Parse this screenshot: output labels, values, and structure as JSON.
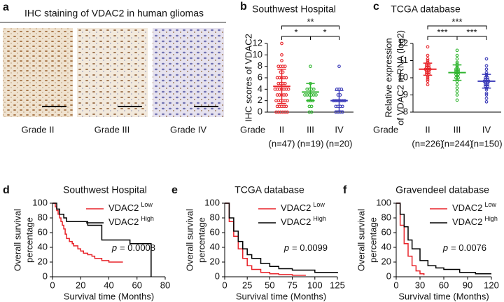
{
  "panel_a": {
    "letter": "a",
    "title": "IHC staining of VDAC2 in human gliomas",
    "images": [
      {
        "label": "Grade II"
      },
      {
        "label": "Grade III"
      },
      {
        "label": "Grade IV"
      }
    ]
  },
  "chart_data": [
    {
      "type": "dot",
      "letter": "b",
      "title": "Southwest Hospital",
      "y_label": [
        "IHC scores of VDAC2"
      ],
      "x_label": "Grade",
      "categories": [
        "II",
        "III",
        "IV"
      ],
      "category_notes": [
        "(n=47)",
        "(n=19)",
        "(n=20)"
      ],
      "colors": [
        "#e8242a",
        "#2fb52f",
        "#3a3ab8"
      ],
      "values": [
        [
          12,
          10,
          9,
          8,
          8,
          8,
          8,
          7,
          7,
          6,
          6,
          6,
          6,
          6,
          5,
          5,
          5,
          5,
          4,
          4,
          4,
          4,
          4,
          4,
          4,
          3,
          3,
          3,
          3,
          3,
          2,
          2,
          2,
          2,
          2,
          2,
          1,
          1,
          1,
          1,
          1,
          0,
          0,
          0,
          0,
          0,
          0
        ],
        [
          8,
          5,
          4,
          4,
          4,
          4,
          3,
          3,
          3,
          3,
          3,
          3,
          2,
          2,
          2,
          1,
          1,
          0,
          0
        ],
        [
          8,
          4,
          4,
          4,
          3,
          3,
          2,
          2,
          2,
          2,
          2,
          2,
          1,
          1,
          1,
          1,
          0,
          0,
          0,
          0
        ]
      ],
      "mean": [
        4.5,
        3.5,
        2
      ],
      "sd": [
        3,
        1.5,
        1.8
      ],
      "ylim": [
        0,
        12
      ],
      "yticks": [
        0,
        2,
        4,
        6,
        8,
        10,
        12
      ],
      "significance": [
        {
          "groups": [
            0,
            2
          ],
          "label": "**"
        },
        {
          "groups": [
            0,
            1
          ],
          "label": "*"
        },
        {
          "groups": [
            1,
            2
          ],
          "label": "*"
        }
      ]
    },
    {
      "type": "dot",
      "letter": "c",
      "title": "TCGA database",
      "y_label": [
        "Relative expression",
        "of VDAC2 mRNA (log2)"
      ],
      "x_label": "Grade",
      "categories": [
        "II",
        "III",
        "IV"
      ],
      "category_notes": [
        "(n=226)",
        "(n=244)",
        "(n=150)"
      ],
      "colors": [
        "#e8242a",
        "#2fb52f",
        "#3a3ab8"
      ],
      "values": [
        [
          11.8,
          11.3,
          11.1,
          11.0,
          10.9,
          10.8,
          10.8,
          10.7,
          10.7,
          10.6,
          10.6,
          10.5,
          10.5,
          10.5,
          10.4,
          10.4,
          10.3,
          10.3,
          10.2,
          10.2,
          10.1,
          10.0,
          9.9,
          9.8,
          9.6
        ],
        [
          11.6,
          11.3,
          11.1,
          10.9,
          10.8,
          10.7,
          10.6,
          10.5,
          10.5,
          10.4,
          10.4,
          10.3,
          10.3,
          10.2,
          10.2,
          10.1,
          10.0,
          10.0,
          9.9,
          9.8,
          9.6,
          9.4,
          9.2,
          9.0,
          8.7
        ],
        [
          11.1,
          10.7,
          10.5,
          10.3,
          10.2,
          10.1,
          10.0,
          10.0,
          9.9,
          9.9,
          9.8,
          9.8,
          9.8,
          9.7,
          9.7,
          9.6,
          9.6,
          9.5,
          9.5,
          9.4,
          9.3,
          9.1,
          9.0,
          8.8,
          8.6
        ]
      ],
      "mean": [
        10.5,
        10.3,
        9.8
      ],
      "sd": [
        0.35,
        0.45,
        0.4
      ],
      "ylim": [
        8,
        12
      ],
      "yticks": [
        8,
        9,
        10,
        11,
        12
      ],
      "significance": [
        {
          "groups": [
            0,
            2
          ],
          "label": "***"
        },
        {
          "groups": [
            0,
            1
          ],
          "label": "***"
        },
        {
          "groups": [
            1,
            2
          ],
          "label": "***"
        }
      ]
    },
    {
      "type": "survival",
      "letter": "d",
      "title": "Southwest Hospital",
      "y_label": [
        "Overall survival",
        "percentage"
      ],
      "x_label": "Survival time (Months)",
      "annotation": {
        "symbol": "p",
        "text": "= 0.0008"
      },
      "series": [
        {
          "name": "VDAC2",
          "superscript": "Low",
          "color": "#e8242a",
          "x": [
            0,
            2,
            3,
            4,
            5,
            6,
            7,
            8,
            9,
            10,
            12,
            14,
            15,
            18,
            20,
            22,
            25,
            28,
            30,
            35,
            40,
            50
          ],
          "values": [
            100,
            95,
            90,
            85,
            80,
            75,
            70,
            65,
            58,
            52,
            48,
            45,
            42,
            38,
            35,
            32,
            30,
            28,
            25,
            22,
            20,
            20
          ]
        },
        {
          "name": "VDAC2",
          "superscript": "High",
          "color": "#000000",
          "x": [
            0,
            3,
            5,
            8,
            10,
            20,
            25,
            35,
            40,
            55,
            65,
            70
          ],
          "values": [
            100,
            92,
            85,
            80,
            75,
            75,
            70,
            50,
            50,
            45,
            45,
            0
          ]
        }
      ],
      "xlim": [
        0,
        80
      ],
      "xticks": [
        0,
        20,
        40,
        60,
        80
      ],
      "ylim": [
        0,
        100
      ],
      "yticks": [
        0,
        20,
        40,
        60,
        80,
        100
      ]
    },
    {
      "type": "survival",
      "letter": "e",
      "title": "TCGA database",
      "y_label": [
        "Overall survival",
        "percentage"
      ],
      "x_label": "Survival time (Months)",
      "annotation": {
        "symbol": "p",
        "text": "= 0.0099"
      },
      "series": [
        {
          "name": "VDAC2",
          "superscript": "Low",
          "color": "#e8242a",
          "x": [
            0,
            5,
            10,
            15,
            20,
            25,
            30,
            40,
            50,
            60,
            75,
            90
          ],
          "values": [
            100,
            75,
            55,
            38,
            25,
            15,
            10,
            6,
            4,
            3,
            2,
            2
          ]
        },
        {
          "name": "VDAC2",
          "superscript": "High",
          "color": "#000000",
          "x": [
            0,
            5,
            10,
            15,
            20,
            25,
            30,
            40,
            50,
            60,
            75,
            100,
            125
          ],
          "values": [
            100,
            80,
            62,
            48,
            38,
            30,
            25,
            18,
            14,
            11,
            9,
            6,
            5
          ]
        }
      ],
      "xlim": [
        0,
        125
      ],
      "xticks": [
        0,
        25,
        50,
        75,
        100,
        125
      ],
      "ylim": [
        0,
        100
      ],
      "yticks": [
        0,
        20,
        40,
        60,
        80,
        100
      ]
    },
    {
      "type": "survival",
      "letter": "f",
      "title": "Gravendeel database",
      "y_label": [
        "Overall survival",
        "percentage"
      ],
      "x_label": "Survival time (Months)",
      "annotation": {
        "symbol": "p",
        "text": "= 0.0076"
      },
      "series": [
        {
          "name": "VDAC2",
          "superscript": "Low",
          "color": "#e8242a",
          "x": [
            0,
            5,
            10,
            15,
            20,
            25,
            30,
            35
          ],
          "values": [
            100,
            70,
            45,
            28,
            15,
            8,
            4,
            2
          ]
        },
        {
          "name": "VDAC2",
          "superscript": "High",
          "color": "#000000",
          "x": [
            0,
            5,
            10,
            15,
            20,
            30,
            40,
            50,
            60,
            80,
            100,
            120
          ],
          "values": [
            100,
            85,
            68,
            50,
            38,
            22,
            15,
            12,
            10,
            6,
            4,
            4
          ]
        }
      ],
      "xlim": [
        0,
        120
      ],
      "xticks": [
        0,
        30,
        60,
        90,
        120
      ],
      "ylim": [
        0,
        100
      ],
      "yticks": [
        0,
        20,
        40,
        60,
        80,
        100
      ]
    }
  ]
}
